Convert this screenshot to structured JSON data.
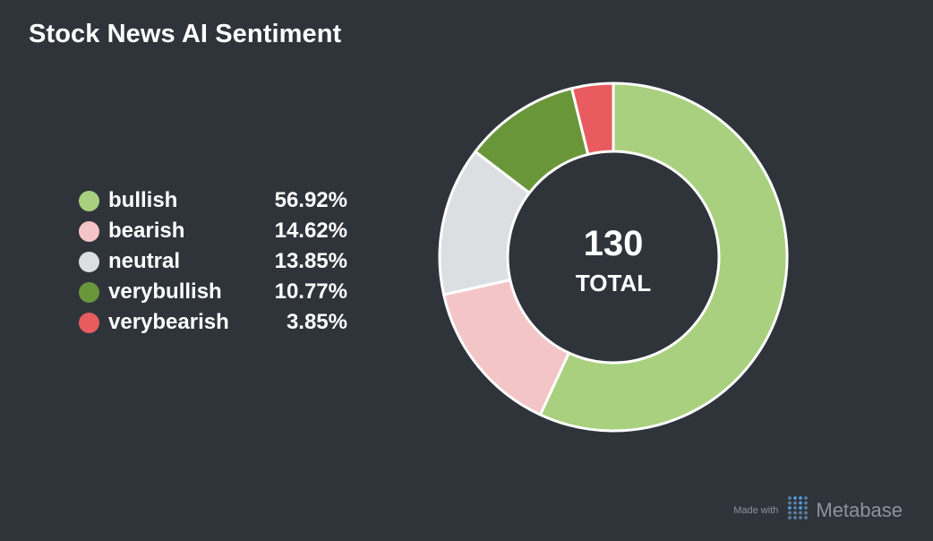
{
  "title": "Stock News AI Sentiment",
  "chart_data": {
    "type": "pie",
    "title": "Stock News AI Sentiment",
    "categories": [
      "bullish",
      "bearish",
      "neutral",
      "verybullish",
      "verybearish"
    ],
    "values": [
      56.92,
      14.62,
      13.85,
      10.77,
      3.85
    ],
    "percent_labels": [
      "56.92%",
      "14.62%",
      "13.85%",
      "10.77%",
      "3.85%"
    ],
    "colors": [
      "#a8d07e",
      "#f4c5c6",
      "#dcdfe1",
      "#6a963a",
      "#e85b5f"
    ],
    "total": "130",
    "total_label": "TOTAL",
    "legend_position": "left"
  },
  "footer": {
    "made_with": "Made with",
    "brand": "Metabase",
    "icon": "metabase-logo-icon"
  }
}
